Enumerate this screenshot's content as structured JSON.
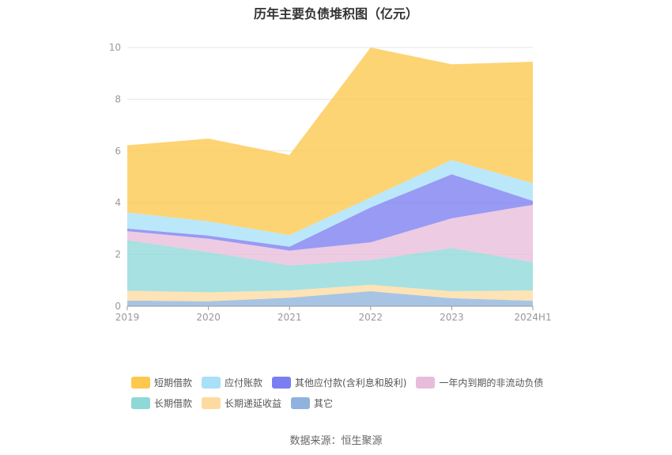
{
  "title": "历年主要负债堆积图（亿元）",
  "source": "数据来源：恒生聚源",
  "chart_data": {
    "type": "area",
    "stacked": true,
    "categories": [
      "2019",
      "2020",
      "2021",
      "2022",
      "2023",
      "2024H1"
    ],
    "ylim": [
      0,
      10
    ],
    "yticks": [
      0,
      2,
      4,
      6,
      8,
      10
    ],
    "grid": true,
    "legend_position": "bottom",
    "series": [
      {
        "name": "其它",
        "color": "#8fb3de",
        "values": [
          0.22,
          0.19,
          0.33,
          0.58,
          0.31,
          0.21
        ]
      },
      {
        "name": "长期递延收益",
        "color": "#fddba0",
        "values": [
          0.38,
          0.35,
          0.28,
          0.25,
          0.27,
          0.4
        ]
      },
      {
        "name": "长期借款",
        "color": "#8ed8d8",
        "values": [
          1.95,
          1.55,
          0.97,
          0.95,
          1.67,
          1.09
        ]
      },
      {
        "name": "一年内到期的非流动负债",
        "color": "#e8bddb",
        "values": [
          0.35,
          0.52,
          0.57,
          0.69,
          1.15,
          2.22
        ]
      },
      {
        "name": "其他应付款(含利息和股利)",
        "color": "#7b7ef0",
        "values": [
          0.1,
          0.12,
          0.15,
          1.35,
          1.7,
          0.15
        ]
      },
      {
        "name": "应付账款",
        "color": "#a8e0f8",
        "values": [
          0.62,
          0.55,
          0.45,
          0.38,
          0.55,
          0.68
        ]
      },
      {
        "name": "短期借款",
        "color": "#fdc84d",
        "values": [
          2.6,
          3.2,
          3.1,
          5.8,
          3.7,
          4.7
        ]
      }
    ]
  },
  "legend_rows": [
    [
      {
        "label": "短期借款",
        "color": "#fdc84d"
      },
      {
        "label": "应付账款",
        "color": "#a8e0f8"
      },
      {
        "label": "其他应付款(含利息和股利)",
        "color": "#7b7ef0"
      },
      {
        "label": "一年内到期的非流动负债",
        "color": "#e8bddb"
      }
    ],
    [
      {
        "label": "长期借款",
        "color": "#8ed8d8"
      },
      {
        "label": "长期递延收益",
        "color": "#fddba0"
      },
      {
        "label": "其它",
        "color": "#8fb3de"
      }
    ]
  ]
}
